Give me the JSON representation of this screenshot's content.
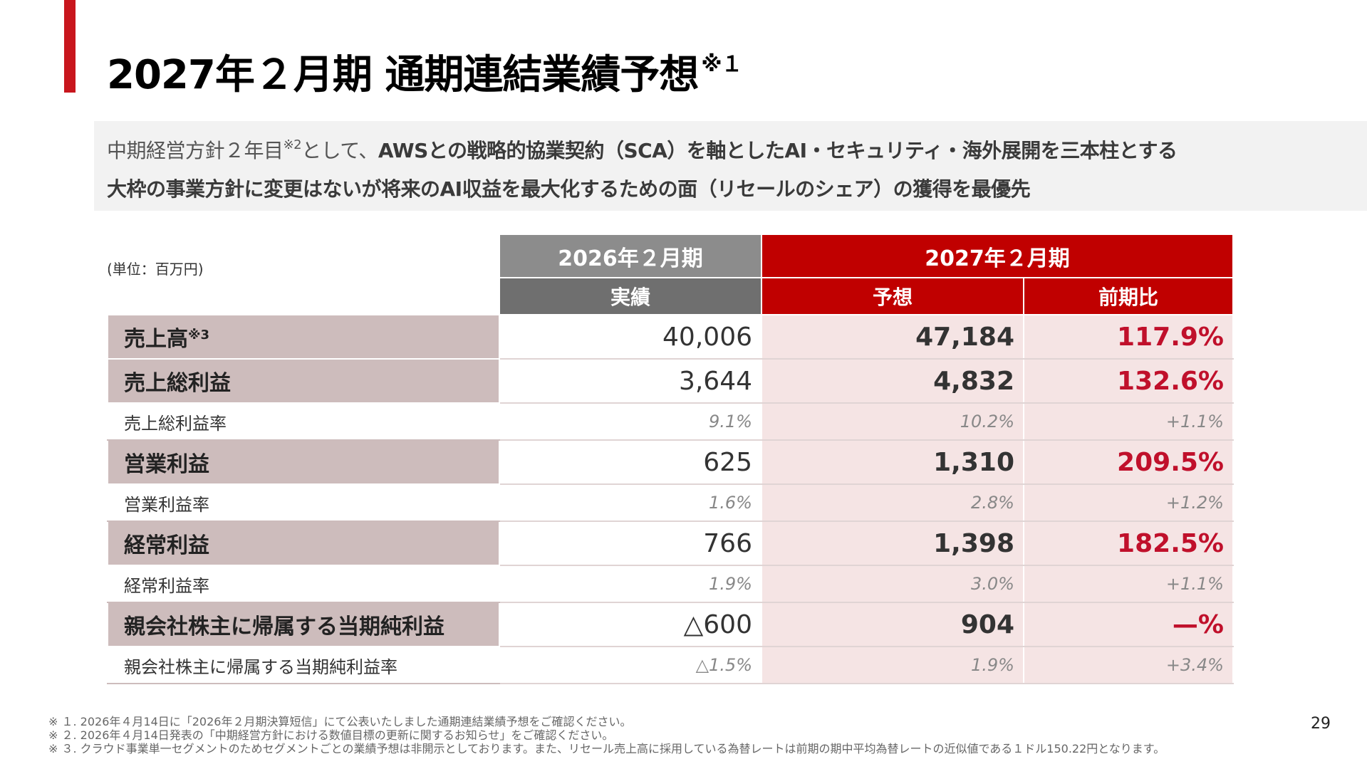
{
  "title": "2027年２月期 通期連結業績予想",
  "title_note": "※１",
  "subtitle": {
    "line1_pre": "中期経営方針２年目",
    "line1_note": "※2",
    "line1_mid": "として、",
    "line1_bold": "AWSとの戦略的協業契約（SCA）を軸としたAI・セキュリティ・海外展開を三本柱とする",
    "line2": "大枠の事業方針に変更はないが将来のAI収益を最大化するための面（リセールのシェア）の獲得を最優先"
  },
  "unit_label": "(単位：百万円)",
  "table": {
    "period_prev": "2026年２月期",
    "period_next": "2027年２月期",
    "col_actual": "実績",
    "col_forecast": "予想",
    "col_yoy": "前期比",
    "rows": [
      {
        "label": "売上高",
        "note": "※3",
        "actual": "40,006",
        "forecast": "47,184",
        "yoy": "117.9%"
      },
      {
        "label": "売上総利益",
        "note": "",
        "actual": "3,644",
        "forecast": "4,832",
        "yoy": "132.6%"
      },
      {
        "label": "売上総利益率",
        "actual": "9.1%",
        "forecast": "10.2%",
        "yoy": "+1.1%"
      },
      {
        "label": "営業利益",
        "note": "",
        "actual": "625",
        "forecast": "1,310",
        "yoy": "209.5%"
      },
      {
        "label": "営業利益率",
        "actual": "1.6%",
        "forecast": "2.8%",
        "yoy": "+1.2%"
      },
      {
        "label": "経常利益",
        "note": "",
        "actual": "766",
        "forecast": "1,398",
        "yoy": "182.5%"
      },
      {
        "label": "経常利益率",
        "actual": "1.9%",
        "forecast": "3.0%",
        "yoy": "+1.1%"
      },
      {
        "label": "親会社株主に帰属する当期純利益",
        "note": "",
        "actual": "△600",
        "forecast": "904",
        "yoy": "—%"
      },
      {
        "label": "親会社株主に帰属する当期純利益率",
        "actual": "△1.5%",
        "forecast": "1.9%",
        "yoy": "+3.4%"
      }
    ]
  },
  "notes": [
    "※ １. 2026年４月14日に「2026年２月期決算短信」にて公表いたしました通期連結業績予想をご確認ください。",
    "※ ２. 2026年４月14日発表の「中期経営方針における数値目標の更新に関するお知らせ」をご確認ください。",
    "※ ３. クラウド事業単一セグメントのためセグメントごとの業績予想は非開示としております。また、リセール売上高に採用している為替レートは前期の期中平均為替レートの近似値である１ドル150.22円となります。"
  ],
  "page_number": "29",
  "colors": {
    "accent": "#c8161d",
    "header_gray": "#8c8c8c",
    "header_red": "#c00000",
    "label_bg": "#cdbcbc",
    "forecast_bg": "#f5e4e4",
    "yoy_text": "#c0102b"
  }
}
